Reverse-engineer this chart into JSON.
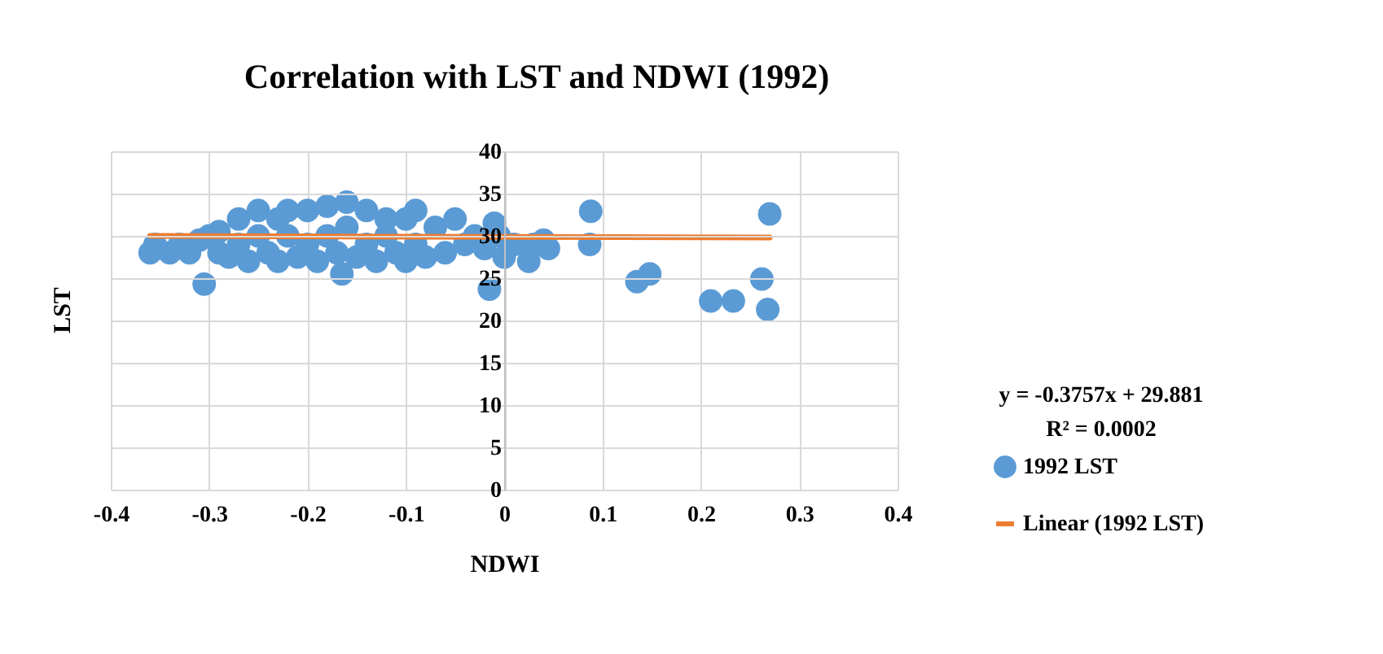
{
  "chart_data": {
    "type": "scatter",
    "title": "Correlation with LST and NDWI (1992)",
    "xlabel": "NDWI",
    "ylabel": "LST",
    "annotations": [
      "y = -0.3757x + 29.881",
      "R² = 0.0002"
    ],
    "xlim": [
      -0.4,
      0.4
    ],
    "xticks": [
      -0.4,
      -0.3,
      -0.2,
      -0.1,
      0,
      0.1,
      0.2,
      0.3,
      0.4
    ],
    "ylim": [
      0,
      40
    ],
    "yticks": [
      0,
      5,
      10,
      15,
      20,
      25,
      30,
      35,
      40
    ],
    "grid": true,
    "legend": "right",
    "marker": "circle",
    "series": [
      {
        "name": "1992 LST",
        "type": "scatter",
        "color": "#5b9bd5",
        "x": [
          -0.36,
          -0.355,
          -0.34,
          -0.33,
          -0.32,
          -0.31,
          -0.305,
          -0.3,
          -0.29,
          -0.29,
          -0.28,
          -0.27,
          -0.27,
          -0.26,
          -0.25,
          -0.25,
          -0.24,
          -0.23,
          -0.23,
          -0.22,
          -0.22,
          -0.21,
          -0.2,
          -0.2,
          -0.19,
          -0.18,
          -0.18,
          -0.17,
          -0.16,
          -0.16,
          -0.165,
          -0.15,
          -0.14,
          -0.14,
          -0.13,
          -0.12,
          -0.12,
          -0.11,
          -0.1,
          -0.1,
          -0.09,
          -0.09,
          -0.08,
          -0.07,
          -0.06,
          -0.05,
          -0.04,
          -0.03,
          -0.02,
          -0.015,
          -0.01,
          -0.005,
          0,
          0.01,
          0.025,
          0.03,
          0.04,
          0.045,
          0.088,
          0.087,
          0.135,
          0.148,
          0.21,
          0.233,
          0.262,
          0.27,
          0.268
        ],
        "values": [
          28,
          29,
          28,
          29,
          28,
          29.5,
          24.3,
          30,
          28,
          30.5,
          27.5,
          32,
          29,
          27,
          33,
          30,
          28,
          32,
          27,
          33,
          30,
          27.5,
          33,
          29,
          27,
          33.5,
          30,
          28,
          34,
          31,
          25.5,
          27.5,
          33,
          29,
          27,
          32,
          30,
          28,
          32,
          27,
          33,
          29,
          27.5,
          31,
          28,
          32,
          29,
          30,
          28.5,
          23.7,
          31.5,
          30,
          27.5,
          29,
          27,
          29,
          29.5,
          28.5,
          32.9,
          29,
          24.6,
          25.5,
          22.3,
          22.3,
          24.9,
          32.6,
          21.3
        ]
      },
      {
        "name": "Linear (1992 LST)",
        "type": "line",
        "marker": "none",
        "color": "#ed7d31",
        "x": [
          -0.36,
          0.27
        ],
        "values": [
          30,
          29.8
        ]
      }
    ]
  }
}
